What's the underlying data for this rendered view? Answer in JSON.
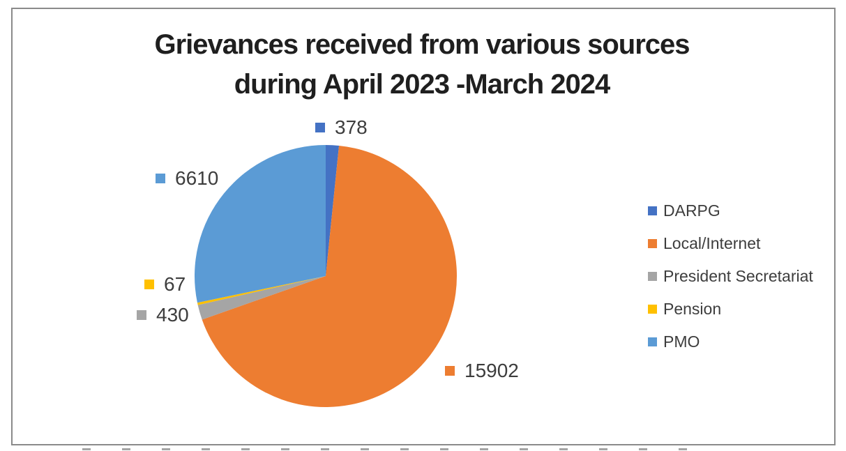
{
  "title": {
    "line1": "Grievances received from various sources",
    "line2": "during April 2023 -March 2024"
  },
  "chart_data": {
    "type": "pie",
    "title": "Grievances received from various sources during April 2023 -March 2024",
    "categories": [
      "DARPG",
      "Local/Internet",
      "President Secretariat",
      "Pension",
      "PMO"
    ],
    "values": [
      378,
      15902,
      430,
      67,
      6610
    ],
    "colors": [
      "#4472C4",
      "#ED7D31",
      "#A5A5A5",
      "#FFC000",
      "#5B9BD5"
    ],
    "total": 23387,
    "legend_position": "right",
    "legend_marker": "square",
    "start_angle_deg": 0,
    "direction": "clockwise",
    "data_labels": [
      {
        "category": "DARPG",
        "text": "378"
      },
      {
        "category": "Local/Internet",
        "text": "15902"
      },
      {
        "category": "President Secretariat",
        "text": "430"
      },
      {
        "category": "Pension",
        "text": "67"
      },
      {
        "category": "PMO",
        "text": "6610"
      }
    ]
  }
}
